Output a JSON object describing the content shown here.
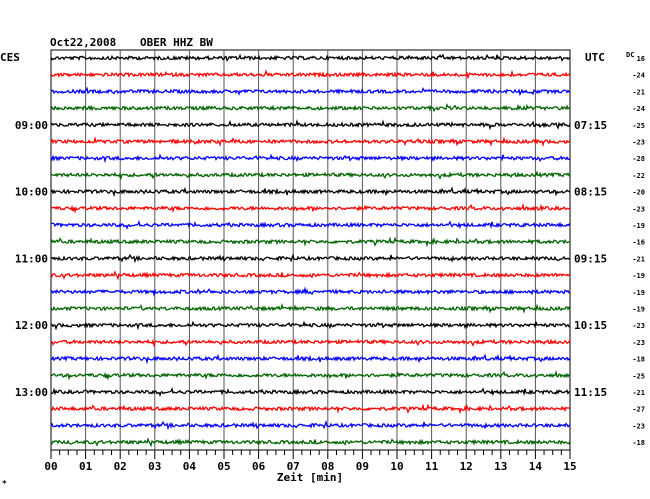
{
  "header": {
    "date": "Oct22,2008",
    "station": "OBER HHZ BW",
    "left_label": "CES",
    "right_label": "UTC",
    "dc_label": "DC"
  },
  "axis": {
    "xlabel": "Zeit [min]",
    "xticks": [
      "00",
      "01",
      "02",
      "03",
      "04",
      "05",
      "06",
      "07",
      "08",
      "09",
      "10",
      "11",
      "12",
      "13",
      "14",
      "15"
    ]
  },
  "footnote": "*",
  "chart_data": {
    "type": "line",
    "title": "Oct22,2008 OBER HHZ BW",
    "xlabel": "Zeit [min]",
    "xlim": [
      0,
      15
    ],
    "grid": true,
    "trace_colors": [
      "#000000",
      "#ff0000",
      "#0000ff",
      "#006400"
    ],
    "local_time_labels": [
      {
        "trace": 4,
        "label": "09:00"
      },
      {
        "trace": 8,
        "label": "10:00"
      },
      {
        "trace": 12,
        "label": "11:00"
      },
      {
        "trace": 16,
        "label": "12:00"
      },
      {
        "trace": 20,
        "label": "13:00"
      }
    ],
    "utc_time_labels": [
      {
        "trace": 4,
        "label": "07:15"
      },
      {
        "trace": 8,
        "label": "08:15"
      },
      {
        "trace": 12,
        "label": "09:15"
      },
      {
        "trace": 16,
        "label": "10:15"
      },
      {
        "trace": 20,
        "label": "11:15"
      }
    ],
    "dc_offsets": [
      16,
      -24,
      -21,
      -24,
      -25,
      -23,
      -28,
      -22,
      -20,
      -23,
      -19,
      -16,
      -21,
      -19,
      -19,
      -19,
      -23,
      -23,
      -18,
      -25,
      -21,
      -27,
      -23,
      -18
    ]
  }
}
